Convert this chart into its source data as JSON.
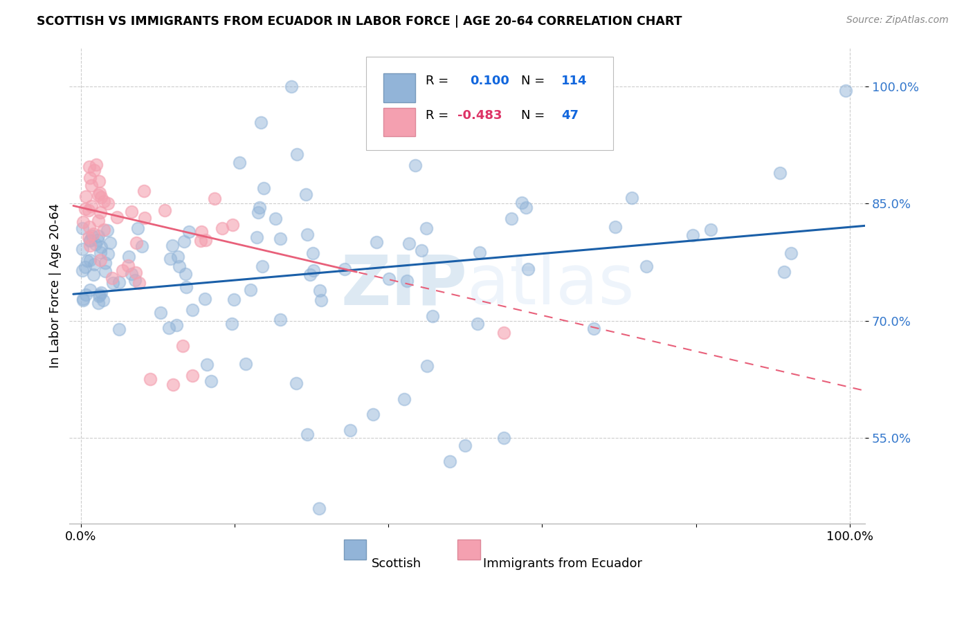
{
  "title": "SCOTTISH VS IMMIGRANTS FROM ECUADOR IN LABOR FORCE | AGE 20-64 CORRELATION CHART",
  "source": "Source: ZipAtlas.com",
  "ylabel": "In Labor Force | Age 20-64",
  "xlim": [
    0.0,
    1.0
  ],
  "ylim": [
    0.44,
    1.05
  ],
  "yticks": [
    0.55,
    0.7,
    0.85,
    1.0
  ],
  "ytick_labels": [
    "55.0%",
    "70.0%",
    "85.0%",
    "100.0%"
  ],
  "xticks": [
    0.0,
    0.2,
    0.4,
    0.6,
    0.8,
    1.0
  ],
  "xtick_labels": [
    "0.0%",
    "",
    "",
    "",
    "",
    "100.0%"
  ],
  "scottish_color": "#92B4D8",
  "ecuador_color": "#F4A0B0",
  "trend_blue": "#1A5FA8",
  "trend_pink": "#E8607A",
  "watermark": "ZIPatlas",
  "blue_line_x0": 0.0,
  "blue_line_y0": 0.735,
  "blue_line_x1": 1.0,
  "blue_line_y1": 0.82,
  "pink_line_x0": 0.0,
  "pink_line_y0": 0.845,
  "pink_line_x1": 1.0,
  "pink_line_y1": 0.615
}
